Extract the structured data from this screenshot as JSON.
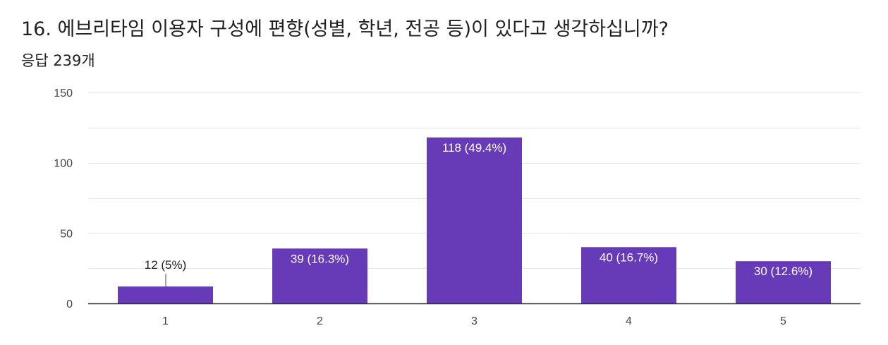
{
  "question": {
    "title": "16. 에브리타임 이용자 구성에 편향(성별, 학년, 전공 등)이 있다고 생각하십니까?",
    "response_count": "응답 239개"
  },
  "colors": {
    "bar": "#673AB7",
    "grid": "#E6E6E6",
    "axis": "#333333",
    "label_inside": "#FFFFFF",
    "label_outside": "#212121"
  },
  "chart_data": {
    "type": "bar",
    "categories": [
      "1",
      "2",
      "3",
      "4",
      "5"
    ],
    "values": [
      12,
      39,
      118,
      40,
      30
    ],
    "data_labels": [
      "12 (5%)",
      "39 (16.3%)",
      "118 (49.4%)",
      "40 (16.7%)",
      "30 (12.6%)"
    ],
    "ylim": [
      0,
      150
    ],
    "yticks": [
      0,
      50,
      100,
      150
    ],
    "grid": true,
    "title": "",
    "xlabel": "",
    "ylabel": ""
  }
}
